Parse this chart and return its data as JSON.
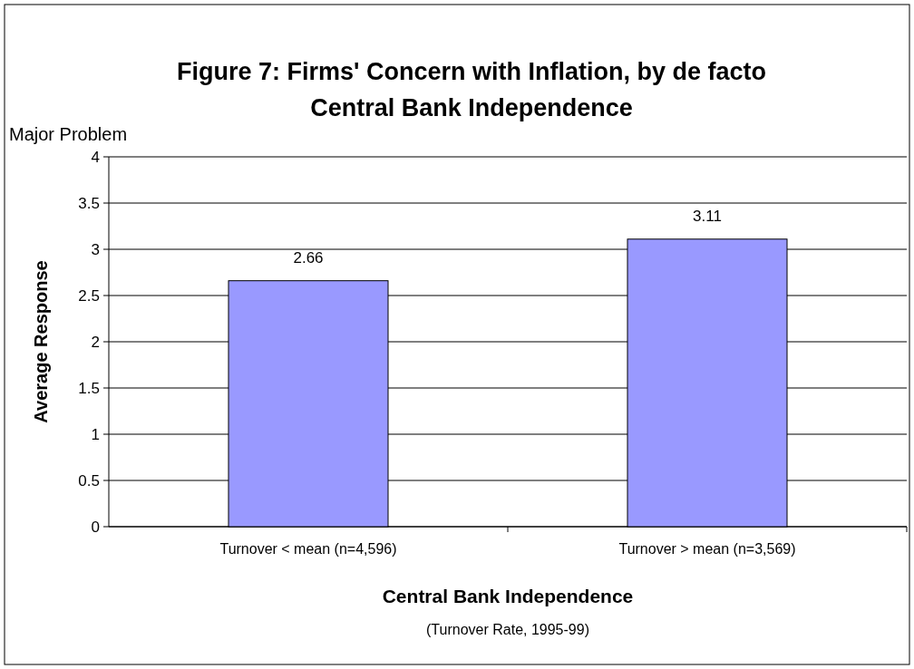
{
  "chart_data": {
    "type": "bar",
    "title": "Figure 7: Firms' Concern with Inflation, by de facto Central Bank Independence",
    "categories": [
      "Turnover < mean (n=4,596)",
      "Turnover > mean (n=3,569)"
    ],
    "values": [
      2.66,
      3.11
    ],
    "color": "#9999ff",
    "ylim": [
      0,
      4
    ],
    "yticks": [
      0,
      {
        "value": 0.5,
        "label": "0.5"
      },
      1,
      {
        "value": 1.5,
        "label": "1.5"
      },
      2,
      {
        "value": 2.5,
        "label": "2.5"
      },
      3,
      {
        "value": 3.5,
        "label": "3.5"
      },
      4
    ],
    "ylabel": "Average Response",
    "xlabel": "Central Bank Independence",
    "annotations": [
      "Major Problem",
      "(Turnover Rate, 1995-99)"
    ],
    "grid": "y",
    "data_labels": true
  }
}
